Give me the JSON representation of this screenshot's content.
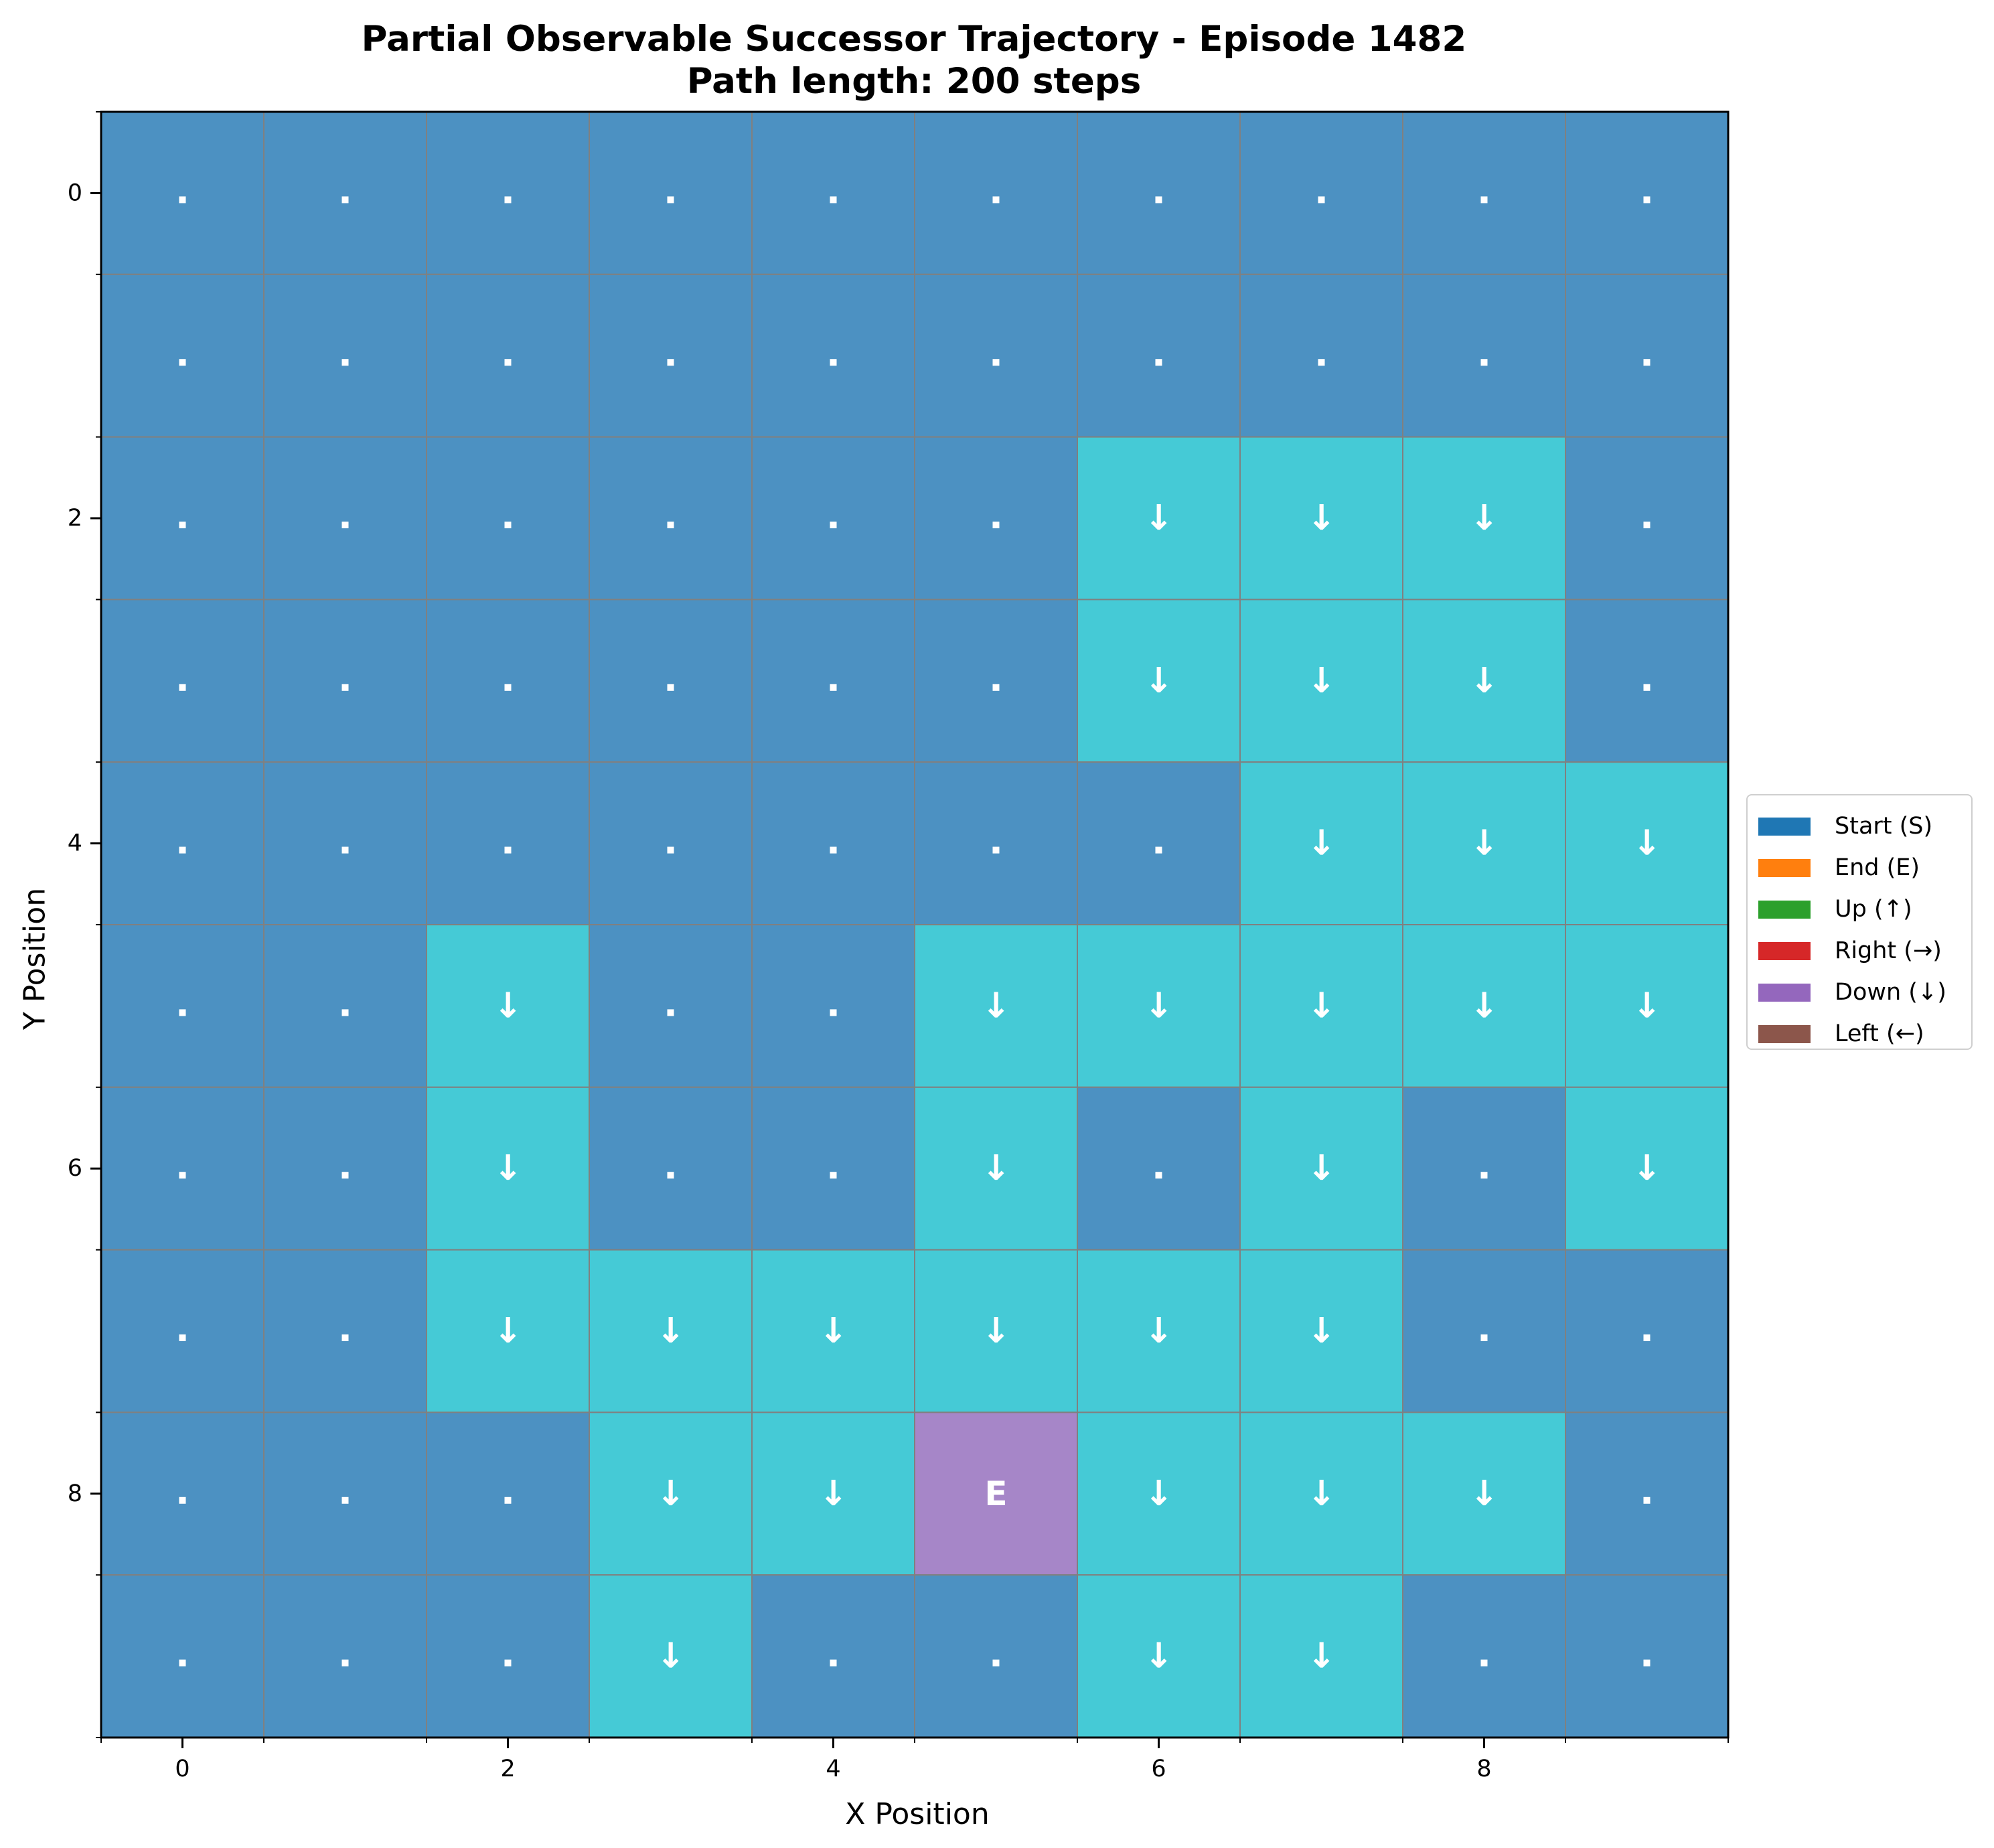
{
  "chart_data": {
    "type": "heatmap",
    "title": "Partial Observable Successor Trajectory - Episode 1482",
    "subtitle": "Path length: 200 steps",
    "xlabel": "X Position",
    "ylabel": "Y Position",
    "x_ticks": [
      "0",
      "2",
      "4",
      "6",
      "8"
    ],
    "y_ticks": [
      "0",
      "2",
      "4",
      "6",
      "8"
    ],
    "xlim": [
      -0.5,
      9.5
    ],
    "ylim": [
      9.5,
      -0.5
    ],
    "grid": true,
    "legend_placement": "center-right-outside",
    "legend": [
      {
        "label": "Start (S)",
        "color": "#1f77b4"
      },
      {
        "label": "End (E)",
        "color": "#ff7f0e"
      },
      {
        "label": "Up (↑)",
        "color": "#2ca02c"
      },
      {
        "label": "Right (→)",
        "color": "#d62728"
      },
      {
        "label": "Down (↓)",
        "color": "#9467bd"
      },
      {
        "label": "Left (←)",
        "color": "#8c564b"
      }
    ],
    "cell_colors": {
      "empty": "#4c91c2",
      "visited": "#45cad6",
      "end": "#a686c8",
      "gridline": "#808080",
      "marker_text": "#ffffff"
    },
    "grid_cells": [
      [
        ".",
        ".",
        ".",
        ".",
        ".",
        ".",
        ".",
        ".",
        ".",
        "."
      ],
      [
        ".",
        ".",
        ".",
        ".",
        ".",
        ".",
        ".",
        ".",
        ".",
        "."
      ],
      [
        ".",
        ".",
        ".",
        ".",
        ".",
        ".",
        "↓",
        "↓",
        "↓",
        "."
      ],
      [
        ".",
        ".",
        ".",
        ".",
        ".",
        ".",
        "↓",
        "↓",
        "↓",
        "."
      ],
      [
        ".",
        ".",
        ".",
        ".",
        ".",
        ".",
        ".",
        "↓",
        "↓",
        "↓"
      ],
      [
        ".",
        ".",
        "↓",
        ".",
        ".",
        "↓",
        "↓",
        "↓",
        "↓",
        "↓"
      ],
      [
        ".",
        ".",
        "↓",
        ".",
        ".",
        "↓",
        ".",
        "↓",
        ".",
        "↓"
      ],
      [
        ".",
        ".",
        "↓",
        "↓",
        "↓",
        "↓",
        "↓",
        "↓",
        ".",
        "."
      ],
      [
        ".",
        ".",
        ".",
        "↓",
        "↓",
        "E",
        "↓",
        "↓",
        "↓",
        "."
      ],
      [
        ".",
        ".",
        ".",
        "↓",
        ".",
        ".",
        "↓",
        "↓",
        ".",
        "."
      ]
    ]
  }
}
